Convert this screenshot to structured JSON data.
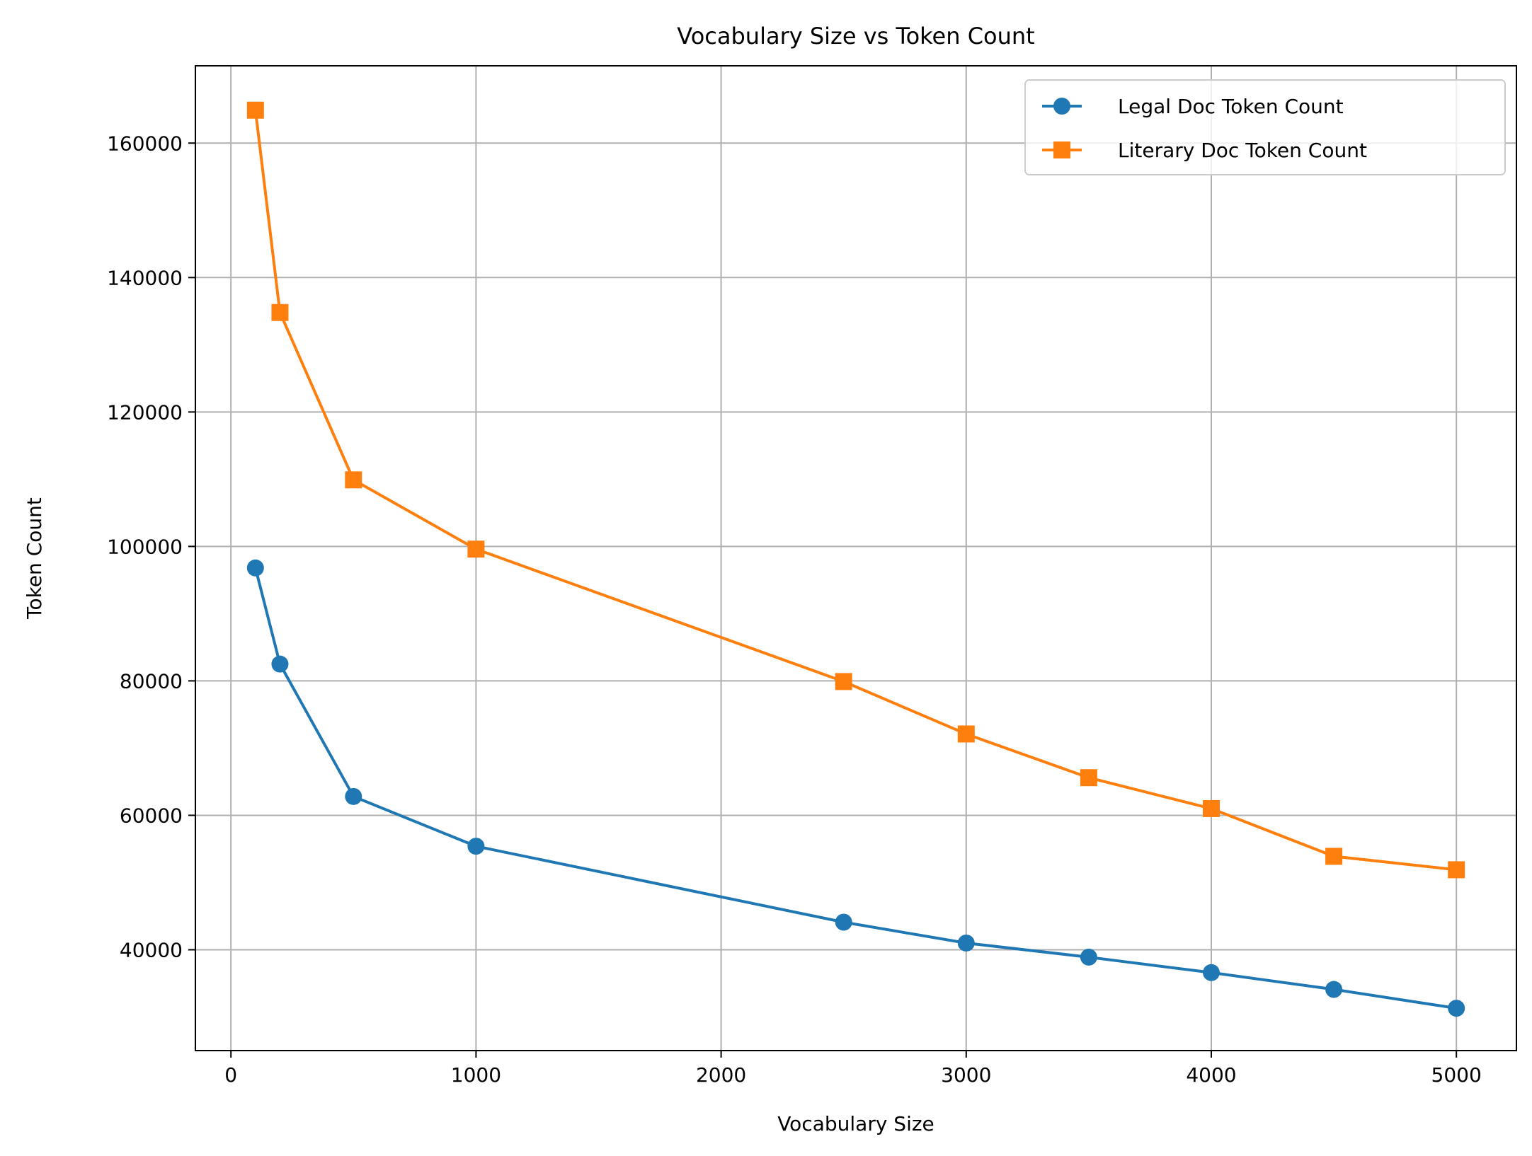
{
  "chart_data": {
    "type": "line",
    "title": "Vocabulary Size vs Token Count",
    "xlabel": "Vocabulary Size",
    "ylabel": "Token Count",
    "xlim": [
      -145,
      5245
    ],
    "ylim": [
      25000,
      171500
    ],
    "xticks": [
      0,
      1000,
      2000,
      3000,
      4000,
      5000
    ],
    "yticks": [
      40000,
      60000,
      80000,
      100000,
      120000,
      140000,
      160000
    ],
    "grid": true,
    "legend_position": "top-right",
    "x": [
      100,
      200,
      500,
      1000,
      2500,
      3000,
      3500,
      4000,
      4500,
      5000
    ],
    "series": [
      {
        "name": "Legal Doc Token Count",
        "color": "#1f77b4",
        "marker": "circle",
        "values": [
          96800,
          82500,
          62800,
          55400,
          44100,
          41000,
          38900,
          36600,
          34100,
          31300
        ]
      },
      {
        "name": "Literary Doc Token Count",
        "color": "#ff7f0e",
        "marker": "square",
        "values": [
          164900,
          134800,
          109900,
          99600,
          79900,
          72100,
          65600,
          61000,
          53900,
          51900
        ]
      }
    ]
  }
}
